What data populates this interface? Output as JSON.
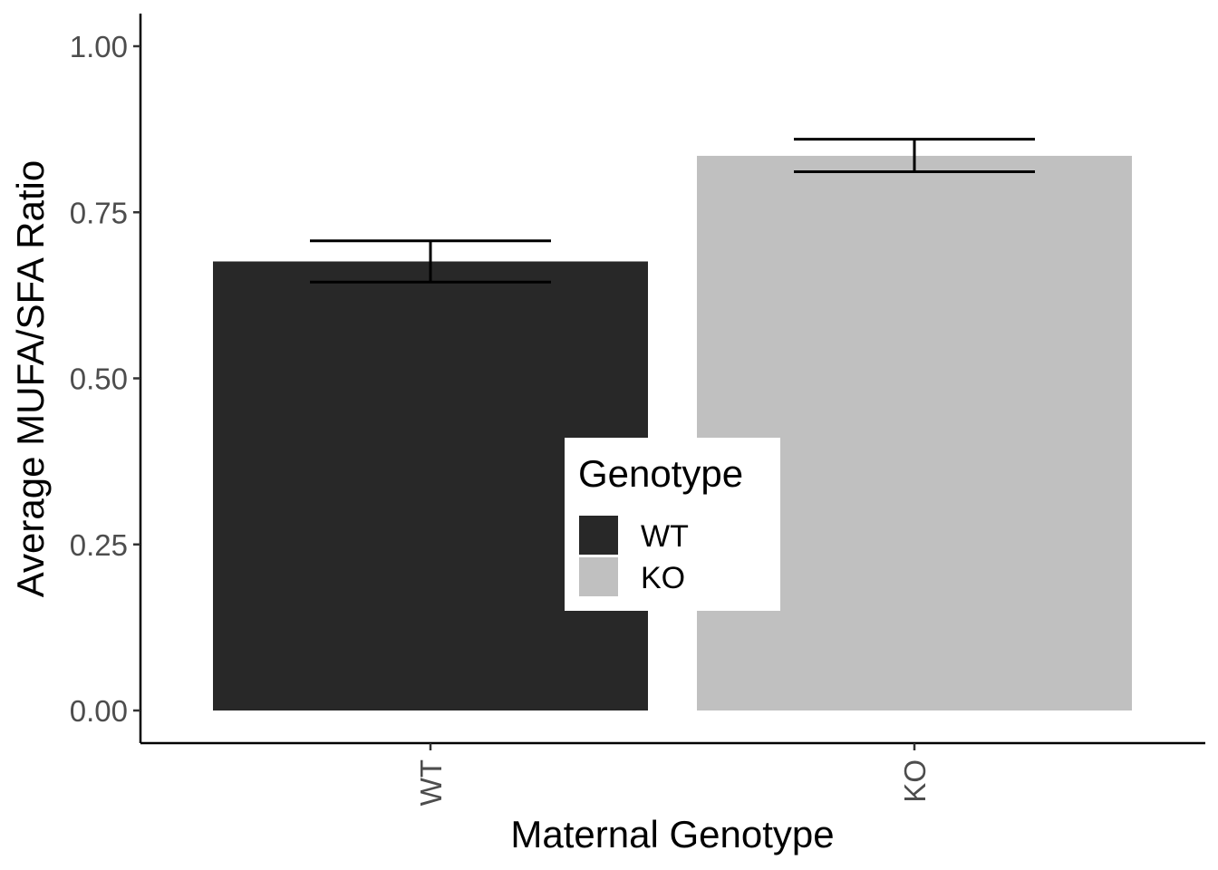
{
  "chart_data": {
    "type": "bar",
    "categories": [
      "WT",
      "KO"
    ],
    "values": [
      0.676,
      0.835
    ],
    "error_bars": [
      {
        "lower": 0.645,
        "upper": 0.707
      },
      {
        "lower": 0.811,
        "upper": 0.86
      }
    ],
    "colors": [
      "#282828",
      "#c0c0c0"
    ],
    "xlabel": "Maternal Genotype",
    "ylabel": "Average MUFA/SFA Ratio",
    "ylim": [
      0,
      1.0
    ],
    "yticks": [
      "0.00",
      "0.25",
      "0.50",
      "0.75",
      "1.00"
    ],
    "ytick_values": [
      0,
      0.25,
      0.5,
      0.75,
      1.0
    ],
    "grid": false,
    "legend": {
      "title": "Genotype",
      "placement": "inside-center",
      "entries": [
        {
          "label": "WT",
          "color": "#282828"
        },
        {
          "label": "KO",
          "color": "#c0c0c0"
        }
      ]
    }
  }
}
